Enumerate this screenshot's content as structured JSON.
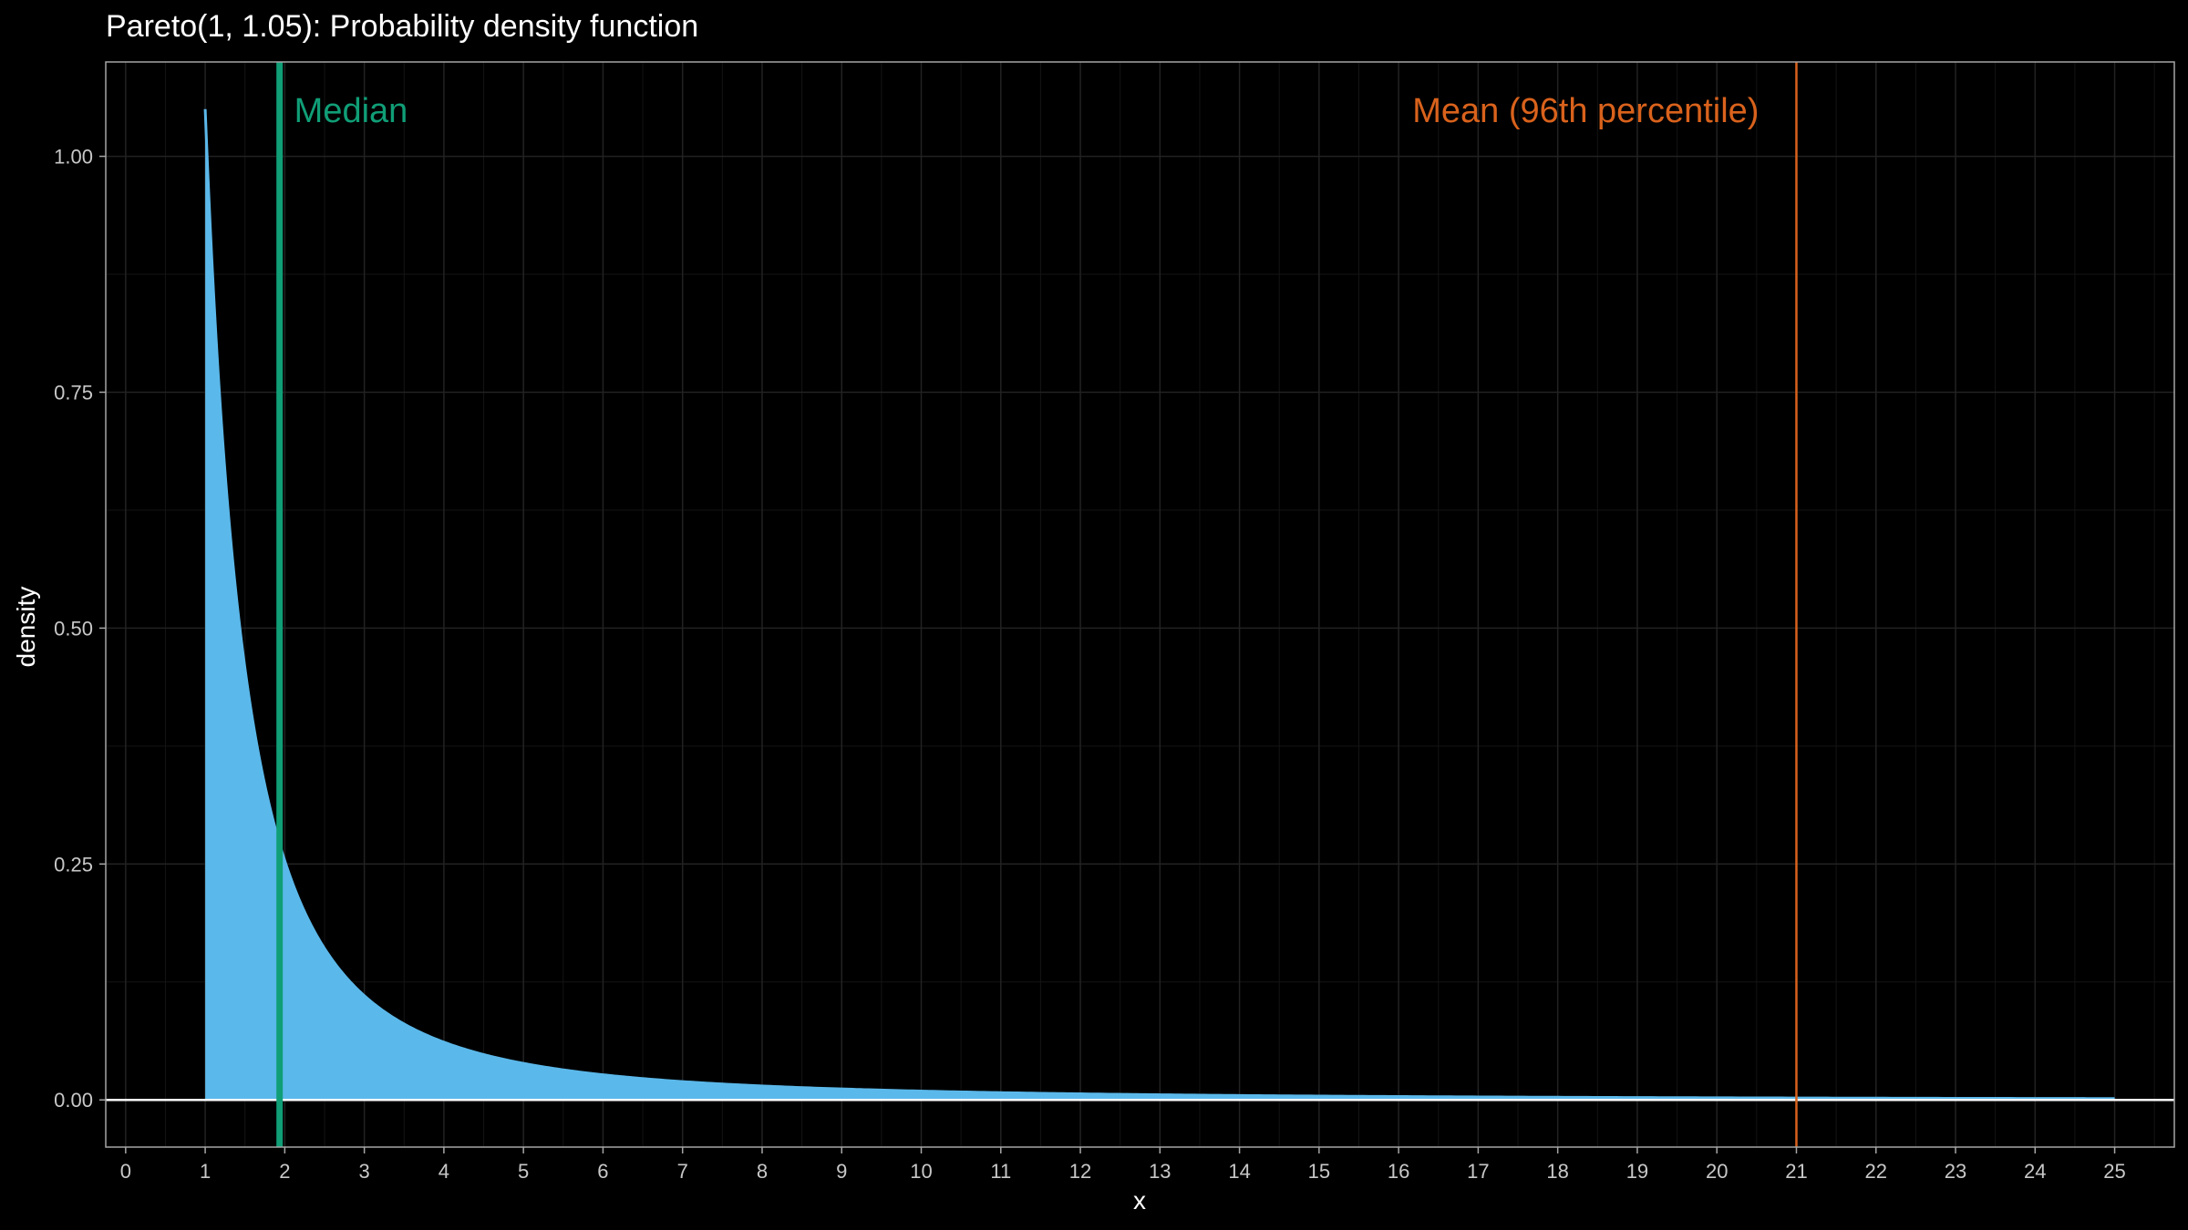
{
  "chart_data": {
    "type": "area",
    "title": "Pareto(1, 1.05): Probability density function",
    "xlabel": "x",
    "ylabel": "density",
    "xlim": [
      -0.25,
      25.75
    ],
    "ylim": [
      -0.05,
      1.1
    ],
    "x_ticks": [
      "0",
      "1",
      "2",
      "3",
      "4",
      "5",
      "6",
      "7",
      "8",
      "9",
      "10",
      "11",
      "12",
      "13",
      "14",
      "15",
      "16",
      "17",
      "18",
      "19",
      "20",
      "21",
      "22",
      "23",
      "24",
      "25"
    ],
    "y_ticks": [
      "0.00",
      "0.25",
      "0.50",
      "0.75",
      "1.00"
    ],
    "grid": true,
    "distribution": {
      "scale": 1,
      "shape": 1.05
    },
    "x": [
      1,
      1.1,
      1.25,
      1.5,
      1.75,
      2,
      2.5,
      3,
      3.5,
      4,
      5,
      6,
      7,
      8,
      9,
      10,
      12,
      14,
      16,
      18,
      20,
      22,
      25
    ],
    "series": [
      {
        "values": [
          1.05,
          0.8668,
          0.6561,
          0.4402,
          0.3079,
          0.2535,
          0.1519,
          0.1061,
          0.0771,
          0.0613,
          0.0422,
          0.0305,
          0.0242,
          0.0189,
          0.0166,
          0.014,
          0.0117,
          0.0093,
          0.008,
          0.0068,
          0.0061,
          0.0053,
          0.0045
        ]
      }
    ],
    "vlines": [
      {
        "x": 1.935,
        "label": "Median",
        "color": "#109e77"
      },
      {
        "x": 21,
        "label": "Mean (96th percentile)",
        "color": "#d9621c"
      }
    ],
    "colors": {
      "fill": "#5bb8ea",
      "background": "#000000",
      "panel_border": "#a6a6a6",
      "baseline": "#ffffff"
    }
  }
}
